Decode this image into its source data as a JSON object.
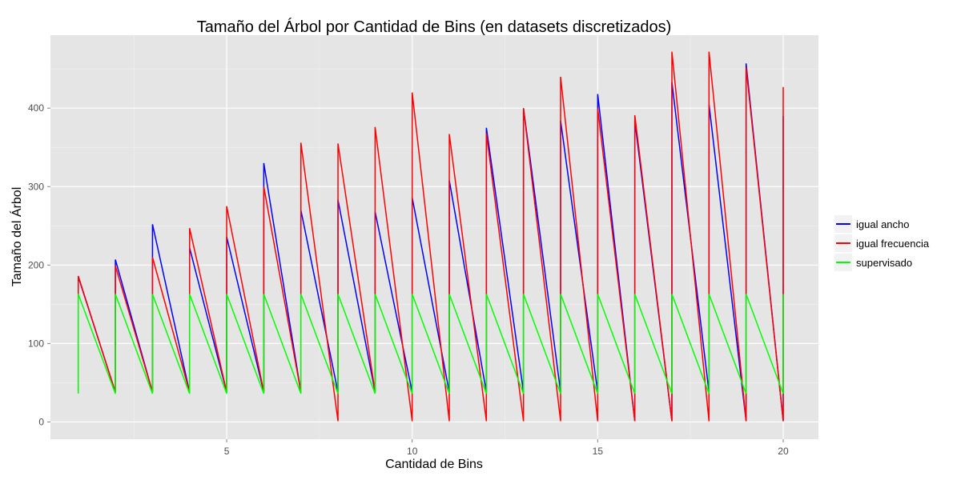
{
  "chart_data": {
    "type": "line",
    "title": "Tamaño del Árbol por Cantidad de Bins (en datasets discretizados)",
    "xlabel": "Cantidad de Bins",
    "ylabel": "Tamaño del Árbol",
    "xlim": [
      0.25,
      20.95
    ],
    "ylim": [
      -22,
      493
    ],
    "x_ticks": [
      5,
      10,
      15,
      20
    ],
    "y_ticks": [
      0,
      100,
      200,
      300,
      400
    ],
    "grid": true,
    "legend_position": "right",
    "series": [
      {
        "name": "igual ancho",
        "color": "#0000ff",
        "segments": [
          {
            "x": 1,
            "high": 185,
            "low": 38
          },
          {
            "x": 2,
            "high": 207,
            "low": 38
          },
          {
            "x": 3,
            "high": 252,
            "low": 38
          },
          {
            "x": 4,
            "high": 222,
            "low": 38
          },
          {
            "x": 5,
            "high": 236,
            "low": 38
          },
          {
            "x": 6,
            "high": 330,
            "low": 38
          },
          {
            "x": 7,
            "high": 270,
            "low": 38
          },
          {
            "x": 8,
            "high": 283,
            "low": 38
          },
          {
            "x": 9,
            "high": 268,
            "low": 38
          },
          {
            "x": 10,
            "high": 286,
            "low": 38
          },
          {
            "x": 11,
            "high": 308,
            "low": 38
          },
          {
            "x": 12,
            "high": 375,
            "low": 38
          },
          {
            "x": 13,
            "high": 400,
            "low": 38
          },
          {
            "x": 14,
            "high": 384,
            "low": 38
          },
          {
            "x": 15,
            "high": 418,
            "low": 38
          },
          {
            "x": 16,
            "high": 384,
            "low": 1
          },
          {
            "x": 17,
            "high": 433,
            "low": 1
          },
          {
            "x": 18,
            "high": 405,
            "low": 38
          },
          {
            "x": 19,
            "high": 457,
            "low": 1
          },
          {
            "x": 20,
            "high": 390,
            "low": 1
          }
        ]
      },
      {
        "name": "igual frecuencia",
        "color": "#ff0000",
        "segments": [
          {
            "x": 1,
            "high": 186,
            "low": 38
          },
          {
            "x": 2,
            "high": 199,
            "low": 38
          },
          {
            "x": 3,
            "high": 210,
            "low": 38
          },
          {
            "x": 4,
            "high": 247,
            "low": 38
          },
          {
            "x": 5,
            "high": 275,
            "low": 38
          },
          {
            "x": 6,
            "high": 300,
            "low": 38
          },
          {
            "x": 7,
            "high": 356,
            "low": 38
          },
          {
            "x": 8,
            "high": 355,
            "low": 1
          },
          {
            "x": 9,
            "high": 376,
            "low": 38
          },
          {
            "x": 10,
            "high": 420,
            "low": 1
          },
          {
            "x": 11,
            "high": 367,
            "low": 1
          },
          {
            "x": 12,
            "high": 368,
            "low": 1
          },
          {
            "x": 13,
            "high": 400,
            "low": 1
          },
          {
            "x": 14,
            "high": 440,
            "low": 1
          },
          {
            "x": 15,
            "high": 400,
            "low": 1
          },
          {
            "x": 16,
            "high": 391,
            "low": 1
          },
          {
            "x": 17,
            "high": 472,
            "low": 1
          },
          {
            "x": 18,
            "high": 472,
            "low": 1
          },
          {
            "x": 19,
            "high": 452,
            "low": 1
          },
          {
            "x": 20,
            "high": 427,
            "low": 1
          }
        ]
      },
      {
        "name": "supervisado",
        "color": "#00ff00",
        "segments": [
          {
            "x": 1,
            "high": 163,
            "low": 36
          },
          {
            "x": 2,
            "high": 163,
            "low": 36
          },
          {
            "x": 3,
            "high": 163,
            "low": 36
          },
          {
            "x": 4,
            "high": 163,
            "low": 36
          },
          {
            "x": 5,
            "high": 163,
            "low": 36
          },
          {
            "x": 6,
            "high": 163,
            "low": 36
          },
          {
            "x": 7,
            "high": 163,
            "low": 36
          },
          {
            "x": 8,
            "high": 163,
            "low": 36
          },
          {
            "x": 9,
            "high": 163,
            "low": 36
          },
          {
            "x": 10,
            "high": 163,
            "low": 36
          },
          {
            "x": 11,
            "high": 163,
            "low": 36
          },
          {
            "x": 12,
            "high": 163,
            "low": 36
          },
          {
            "x": 13,
            "high": 163,
            "low": 36
          },
          {
            "x": 14,
            "high": 163,
            "low": 36
          },
          {
            "x": 15,
            "high": 163,
            "low": 36
          },
          {
            "x": 16,
            "high": 163,
            "low": 36
          },
          {
            "x": 17,
            "high": 163,
            "low": 36
          },
          {
            "x": 18,
            "high": 163,
            "low": 36
          },
          {
            "x": 19,
            "high": 163,
            "low": 36
          },
          {
            "x": 20,
            "high": 163,
            "low": 36
          }
        ]
      }
    ]
  }
}
